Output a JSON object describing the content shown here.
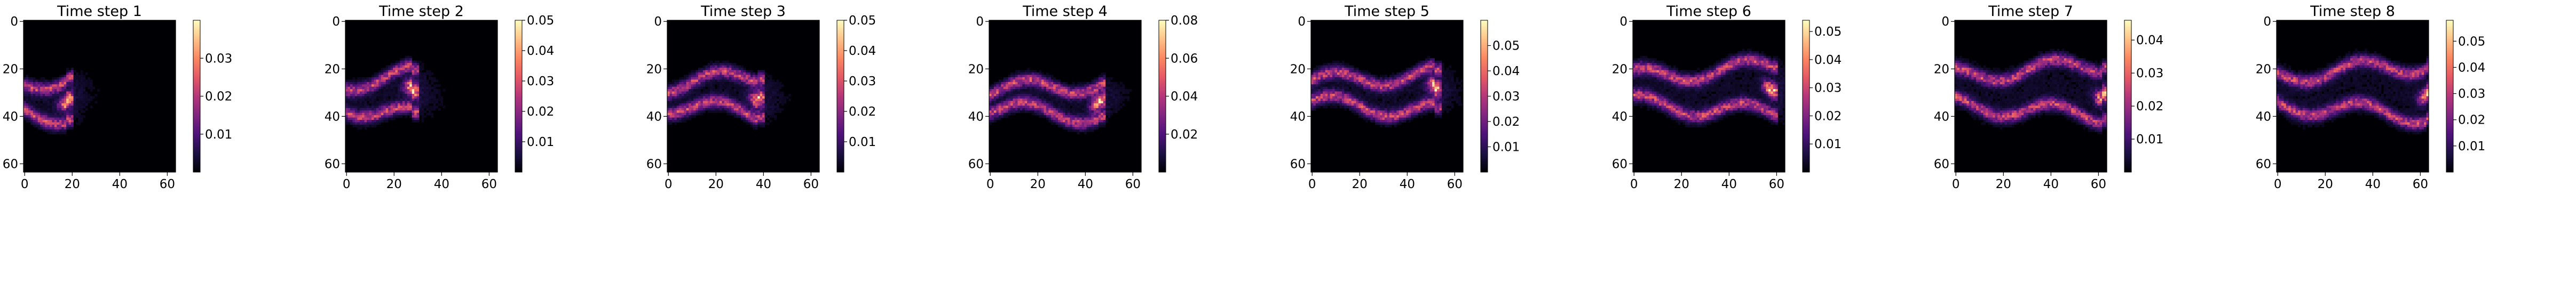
{
  "figure": {
    "colormap": "magma",
    "colormap_stops": [
      "#000004",
      "#1c1044",
      "#4f127b",
      "#812581",
      "#b5367a",
      "#e55964",
      "#fb8761",
      "#fec287",
      "#fcfdbf"
    ]
  },
  "chart_data": [
    {
      "type": "heatmap",
      "title": "Time step 1",
      "x_ticks": [
        "0",
        "20",
        "40",
        "60"
      ],
      "y_ticks": [
        "0",
        "20",
        "40",
        "60"
      ],
      "xlim": [
        0,
        63
      ],
      "ylim": [
        0,
        63
      ],
      "grid": false,
      "colorbar": {
        "ticks": [
          "0.01",
          "0.02",
          "0.03"
        ],
        "tick_values": [
          0.01,
          0.02,
          0.03
        ],
        "range": [
          0,
          0.04
        ]
      },
      "structure": {
        "front_x": 18,
        "center_y": 32,
        "spread": 9,
        "tail_x": 40,
        "peak": 0.038
      }
    },
    {
      "type": "heatmap",
      "title": "Time step 2",
      "x_ticks": [
        "0",
        "20",
        "40",
        "60"
      ],
      "y_ticks": [
        "0",
        "20",
        "40",
        "60"
      ],
      "xlim": [
        0,
        63
      ],
      "ylim": [
        0,
        63
      ],
      "grid": false,
      "colorbar": {
        "ticks": [
          "0.01",
          "0.02",
          "0.03",
          "0.04",
          "0.05"
        ],
        "tick_values": [
          0.01,
          0.02,
          0.03,
          0.04,
          0.05
        ],
        "range": [
          0,
          0.05
        ]
      },
      "structure": {
        "front_x": 28,
        "center_y": 31,
        "spread": 9,
        "tail_x": 48,
        "peak": 0.048
      }
    },
    {
      "type": "heatmap",
      "title": "Time step 3",
      "x_ticks": [
        "0",
        "20",
        "40",
        "60"
      ],
      "y_ticks": [
        "0",
        "20",
        "40",
        "60"
      ],
      "xlim": [
        0,
        63
      ],
      "ylim": [
        0,
        63
      ],
      "grid": false,
      "colorbar": {
        "ticks": [
          "0.01",
          "0.02",
          "0.03",
          "0.04",
          "0.05"
        ],
        "tick_values": [
          0.01,
          0.02,
          0.03,
          0.04,
          0.05
        ],
        "range": [
          0,
          0.05
        ]
      },
      "structure": {
        "front_x": 38,
        "center_y": 31,
        "spread": 8,
        "tail_x": 55,
        "peak": 0.05
      }
    },
    {
      "type": "heatmap",
      "title": "Time step 4",
      "x_ticks": [
        "0",
        "20",
        "40",
        "60"
      ],
      "y_ticks": [
        "0",
        "20",
        "40",
        "60"
      ],
      "xlim": [
        0,
        63
      ],
      "ylim": [
        0,
        63
      ],
      "grid": false,
      "colorbar": {
        "ticks": [
          "0.02",
          "0.04",
          "0.06",
          "0.08"
        ],
        "tick_values": [
          0.02,
          0.04,
          0.06,
          0.08
        ],
        "range": [
          0,
          0.08
        ]
      },
      "structure": {
        "front_x": 46,
        "center_y": 33,
        "spread": 7,
        "tail_x": 60,
        "peak": 0.078
      }
    },
    {
      "type": "heatmap",
      "title": "Time step 5",
      "x_ticks": [
        "0",
        "20",
        "40",
        "60"
      ],
      "y_ticks": [
        "0",
        "20",
        "40",
        "60"
      ],
      "xlim": [
        0,
        63
      ],
      "ylim": [
        0,
        63
      ],
      "grid": false,
      "colorbar": {
        "ticks": [
          "0.01",
          "0.02",
          "0.03",
          "0.04",
          "0.05"
        ],
        "tick_values": [
          0.01,
          0.02,
          0.03,
          0.04,
          0.05
        ],
        "range": [
          0,
          0.06
        ]
      },
      "structure": {
        "front_x": 52,
        "center_y": 30,
        "spread": 8,
        "tail_x": 63,
        "peak": 0.058
      }
    },
    {
      "type": "heatmap",
      "title": "Time step 6",
      "x_ticks": [
        "0",
        "20",
        "40",
        "60"
      ],
      "y_ticks": [
        "0",
        "20",
        "40",
        "60"
      ],
      "xlim": [
        0,
        63
      ],
      "ylim": [
        0,
        63
      ],
      "grid": false,
      "colorbar": {
        "ticks": [
          "0.01",
          "0.02",
          "0.03",
          "0.04",
          "0.05"
        ],
        "tick_values": [
          0.01,
          0.02,
          0.03,
          0.04,
          0.05
        ],
        "range": [
          0,
          0.054
        ]
      },
      "structure": {
        "front_x": 58,
        "center_y": 29,
        "spread": 10,
        "tail_x": 63,
        "peak": 0.054
      }
    },
    {
      "type": "heatmap",
      "title": "Time step 7",
      "x_ticks": [
        "0",
        "20",
        "40",
        "60"
      ],
      "y_ticks": [
        "0",
        "20",
        "40",
        "60"
      ],
      "xlim": [
        0,
        63
      ],
      "ylim": [
        0,
        63
      ],
      "grid": false,
      "colorbar": {
        "ticks": [
          "0.01",
          "0.02",
          "0.03",
          "0.04"
        ],
        "tick_values": [
          0.01,
          0.02,
          0.03,
          0.04
        ],
        "range": [
          0,
          0.046
        ]
      },
      "structure": {
        "front_x": 62,
        "center_y": 29,
        "spread": 11,
        "tail_x": 63,
        "peak": 0.046
      }
    },
    {
      "type": "heatmap",
      "title": "Time step 8",
      "x_ticks": [
        "0",
        "20",
        "40",
        "60"
      ],
      "y_ticks": [
        "0",
        "20",
        "40",
        "60"
      ],
      "xlim": [
        0,
        63
      ],
      "ylim": [
        0,
        63
      ],
      "grid": false,
      "colorbar": {
        "ticks": [
          "0.01",
          "0.02",
          "0.03",
          "0.04",
          "0.05"
        ],
        "tick_values": [
          0.01,
          0.02,
          0.03,
          0.04,
          0.05
        ],
        "range": [
          0,
          0.058
        ]
      },
      "structure": {
        "front_x": 63,
        "center_y": 29,
        "spread": 11,
        "tail_x": 63,
        "peak": 0.058
      }
    }
  ]
}
